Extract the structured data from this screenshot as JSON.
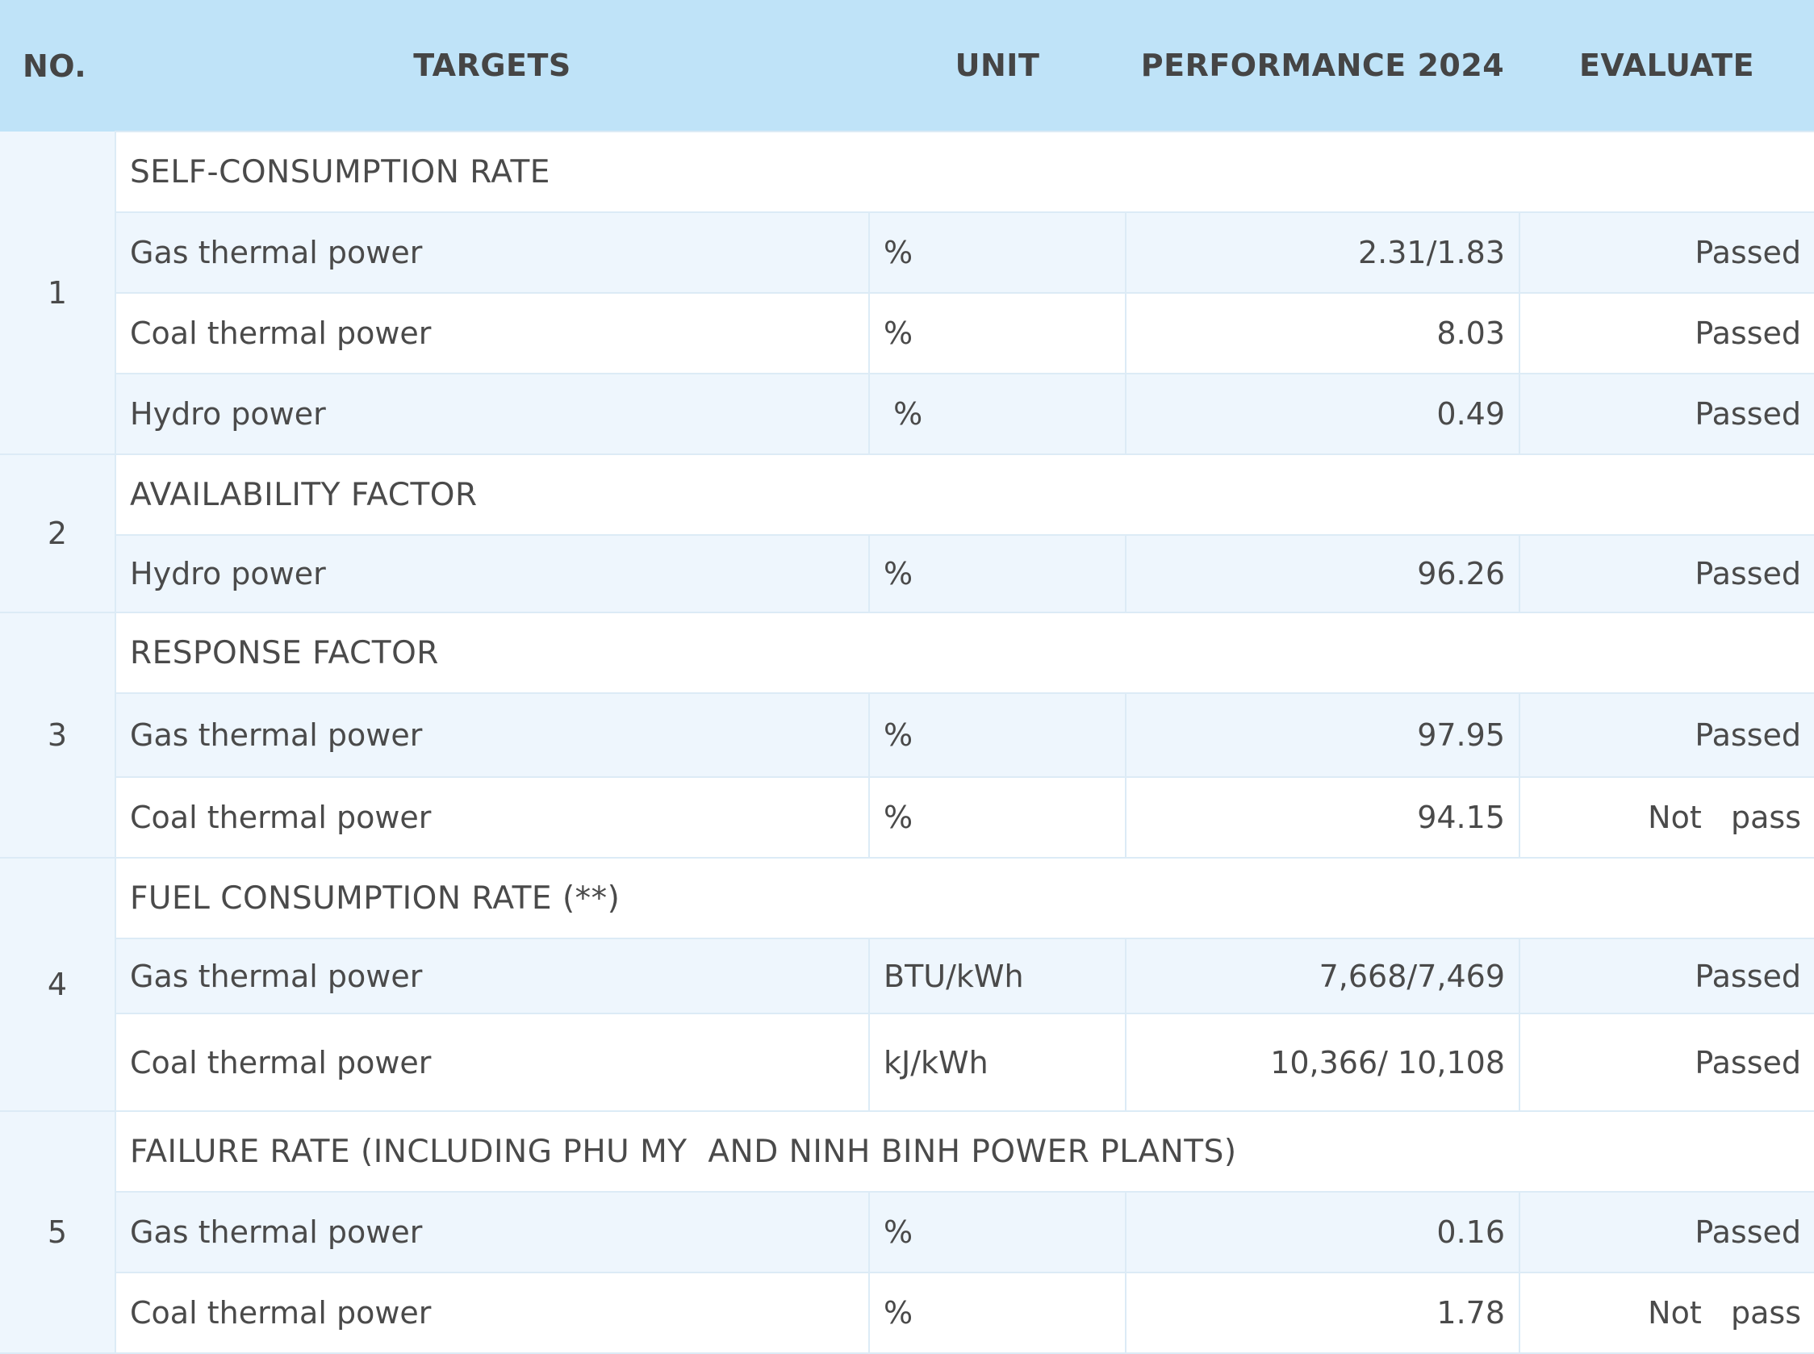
{
  "header": {
    "no": "NO.",
    "targets": "TARGETS",
    "unit": "UNIT",
    "performance": "PERFORMANCE 2024",
    "evaluate": "EVALUATE"
  },
  "groups": [
    {
      "no": "1",
      "title": "SELF-CONSUMPTION RATE",
      "rows": [
        {
          "target": "Gas thermal power",
          "unit": "%",
          "value": "2.31/1.83",
          "evaluate": "Passed"
        },
        {
          "target": "Coal thermal power",
          "unit": "%",
          "value": "8.03",
          "evaluate": "Passed"
        },
        {
          "target": "Hydro power",
          "unit": " %",
          "value": "0.49",
          "evaluate": "Passed"
        }
      ]
    },
    {
      "no": "2",
      "title": "AVAILABILITY FACTOR",
      "rows": [
        {
          "target": "Hydro power",
          "unit": "%",
          "value": "96.26",
          "evaluate": "Passed"
        }
      ]
    },
    {
      "no": "3",
      "title": "RESPONSE FACTOR",
      "rows": [
        {
          "target": "Gas thermal power",
          "unit": "%",
          "value": "97.95",
          "evaluate": "Passed"
        },
        {
          "target": "Coal thermal power",
          "unit": "%",
          "value": "94.15",
          "evaluate": "Not   pass"
        }
      ]
    },
    {
      "no": "4",
      "title": "FUEL CONSUMPTION RATE (**)",
      "rows": [
        {
          "target": "Gas thermal power",
          "unit": "BTU/kWh",
          "value": "7,668/7,469",
          "evaluate": "Passed"
        },
        {
          "target": "Coal thermal power",
          "unit": "kJ/kWh",
          "value": "10,366/ 10,108",
          "evaluate": "Passed"
        }
      ]
    },
    {
      "no": "5",
      "title": "FAILURE RATE (INCLUDING PHU MY  AND NINH BINH POWER PLANTS)",
      "rows": [
        {
          "target": "Gas thermal power",
          "unit": "%",
          "value": "0.16",
          "evaluate": "Passed"
        },
        {
          "target": "Coal thermal power",
          "unit": "%",
          "value": "1.78",
          "evaluate": "Not   pass"
        }
      ]
    }
  ]
}
